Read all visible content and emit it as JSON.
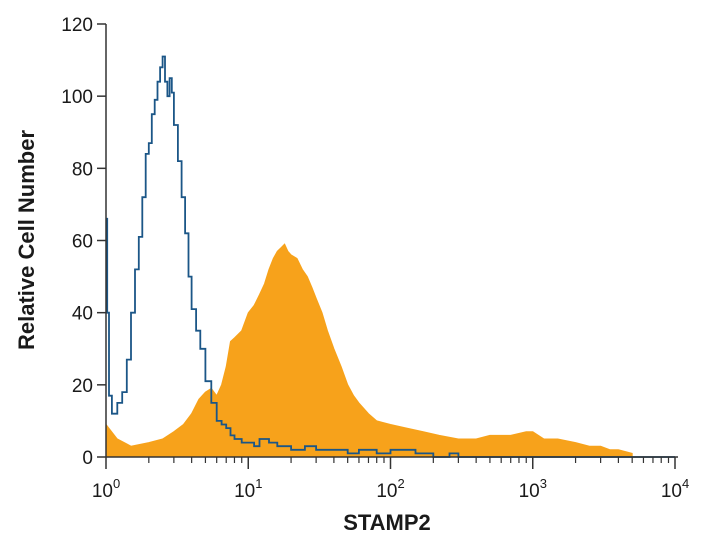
{
  "chart_data": {
    "type": "histogram",
    "title": "",
    "xlabel": "STAMP2",
    "ylabel": "Relative Cell Number",
    "x_scale": "log",
    "xlim": [
      1,
      10000
    ],
    "ylim": [
      0,
      120
    ],
    "x_ticks": [
      {
        "value": 1,
        "base": "10",
        "exp": "0"
      },
      {
        "value": 10,
        "base": "10",
        "exp": "1"
      },
      {
        "value": 100,
        "base": "10",
        "exp": "2"
      },
      {
        "value": 1000,
        "base": "10",
        "exp": "3"
      },
      {
        "value": 10000,
        "base": "10",
        "exp": "4"
      }
    ],
    "y_ticks": [
      "0",
      "20",
      "40",
      "60",
      "80",
      "100",
      "120"
    ],
    "grid": false,
    "legend": "none",
    "series": [
      {
        "style": "filled",
        "color": "#f7a21b",
        "x": [
          1.0,
          1.2,
          1.5,
          2.0,
          2.5,
          3.0,
          3.5,
          4.0,
          4.5,
          5.0,
          5.5,
          6.0,
          6.5,
          7.0,
          7.5,
          8.0,
          9.0,
          10.0,
          11.0,
          12.0,
          13.0,
          14.0,
          15.0,
          16.0,
          17.0,
          18.0,
          19.0,
          20.0,
          22.0,
          24.0,
          26.0,
          28.0,
          30.0,
          33.0,
          36.0,
          40.0,
          45.0,
          50.0,
          55.0,
          60.0,
          70.0,
          80.0,
          100.0,
          130.0,
          170.0,
          220.0,
          300.0,
          400.0,
          500.0,
          700.0,
          900.0,
          1000.0,
          1200.0,
          1500.0,
          2000.0,
          2500.0,
          3000.0,
          3500.0,
          4000.0,
          5000.0
        ],
        "y": [
          9,
          5,
          3,
          4,
          5,
          7,
          9,
          12,
          16,
          18,
          19,
          17,
          20,
          25,
          32,
          33,
          35,
          40,
          42,
          45,
          48,
          52,
          55,
          57,
          58,
          59,
          57,
          56,
          55,
          52,
          50,
          47,
          44,
          40,
          35,
          30,
          25,
          20,
          17,
          15,
          12,
          10,
          9,
          8,
          7,
          6,
          5,
          5,
          6,
          6,
          7,
          7,
          5,
          5,
          4,
          3,
          3,
          2,
          2,
          1
        ]
      },
      {
        "style": "outline",
        "color": "#1b5687",
        "x": [
          1.0,
          1.02,
          1.05,
          1.1,
          1.2,
          1.3,
          1.4,
          1.5,
          1.6,
          1.7,
          1.8,
          1.9,
          2.0,
          2.1,
          2.2,
          2.3,
          2.4,
          2.5,
          2.6,
          2.7,
          2.8,
          2.9,
          3.0,
          3.2,
          3.4,
          3.6,
          3.8,
          4.0,
          4.3,
          4.6,
          5.0,
          5.5,
          6.0,
          6.5,
          7.0,
          7.5,
          8.0,
          9.0,
          10.0,
          11.0,
          12.0,
          14.0,
          16.0,
          20.0,
          25.0,
          30.0,
          40.0,
          50.0,
          60.0,
          70.0,
          80.0,
          100.0,
          150.0,
          200.0,
          260.0,
          300.0,
          500.0,
          1000.0,
          5000.0,
          10000.0
        ],
        "y": [
          66,
          40,
          17,
          12,
          15,
          18,
          27,
          40,
          52,
          61,
          72,
          84,
          87,
          95,
          99,
          104,
          108,
          111,
          104,
          100,
          105,
          101,
          92,
          82,
          72,
          62,
          50,
          41,
          35,
          30,
          21,
          15,
          10,
          9,
          8,
          6,
          5,
          4,
          4,
          3,
          5,
          4,
          3,
          2,
          3,
          2,
          2,
          1,
          2,
          2,
          1,
          2,
          1,
          0,
          1,
          0,
          0,
          0,
          0,
          0
        ]
      }
    ]
  }
}
